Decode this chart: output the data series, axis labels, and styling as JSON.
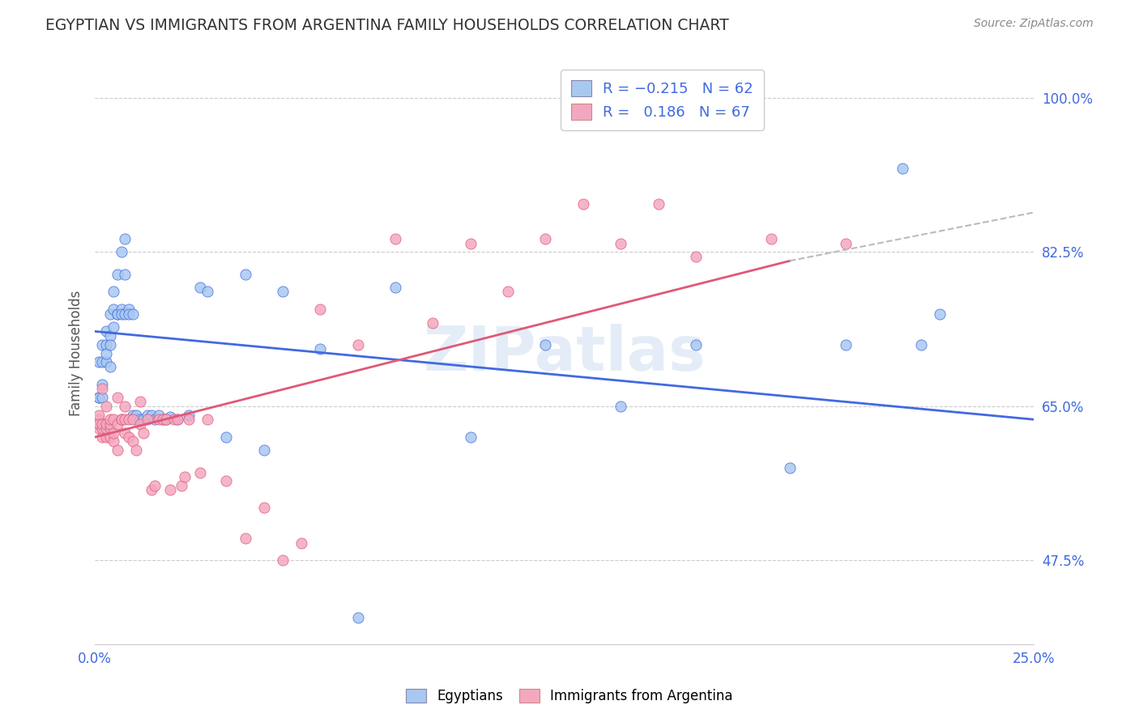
{
  "title": "EGYPTIAN VS IMMIGRANTS FROM ARGENTINA FAMILY HOUSEHOLDS CORRELATION CHART",
  "source": "Source: ZipAtlas.com",
  "ylabel": "Family Households",
  "ytick_labels": [
    "47.5%",
    "65.0%",
    "82.5%",
    "100.0%"
  ],
  "ytick_values": [
    0.475,
    0.65,
    0.825,
    1.0
  ],
  "xlim": [
    0.0,
    0.25
  ],
  "ylim": [
    0.38,
    1.04
  ],
  "xtick_positions": [
    0.0,
    0.05,
    0.1,
    0.15,
    0.2,
    0.25
  ],
  "xtick_labels_show": [
    "0.0%",
    "",
    "",
    "",
    "",
    "25.0%"
  ],
  "color_blue": "#A8C8F0",
  "color_pink": "#F4A8C0",
  "trendline_blue_color": "#4169E1",
  "trendline_pink_color": "#E05878",
  "trendline_dashed_color": "#BBBBBB",
  "title_color": "#333333",
  "axis_label_color": "#4169E1",
  "source_color": "#888888",
  "watermark": "ZIPatlas",
  "blue_x": [
    0.001,
    0.001,
    0.001,
    0.002,
    0.002,
    0.002,
    0.002,
    0.003,
    0.003,
    0.003,
    0.003,
    0.004,
    0.004,
    0.004,
    0.004,
    0.005,
    0.005,
    0.005,
    0.006,
    0.006,
    0.006,
    0.007,
    0.007,
    0.007,
    0.008,
    0.008,
    0.008,
    0.009,
    0.009,
    0.01,
    0.01,
    0.011,
    0.011,
    0.012,
    0.013,
    0.014,
    0.015,
    0.016,
    0.017,
    0.018,
    0.019,
    0.02,
    0.022,
    0.025,
    0.028,
    0.03,
    0.035,
    0.04,
    0.045,
    0.05,
    0.06,
    0.07,
    0.08,
    0.1,
    0.12,
    0.14,
    0.16,
    0.185,
    0.2,
    0.215,
    0.22,
    0.225
  ],
  "blue_y": [
    0.66,
    0.7,
    0.66,
    0.7,
    0.675,
    0.66,
    0.72,
    0.7,
    0.72,
    0.71,
    0.735,
    0.695,
    0.73,
    0.72,
    0.755,
    0.74,
    0.76,
    0.78,
    0.755,
    0.8,
    0.755,
    0.76,
    0.755,
    0.825,
    0.8,
    0.755,
    0.84,
    0.76,
    0.755,
    0.755,
    0.64,
    0.635,
    0.64,
    0.635,
    0.635,
    0.64,
    0.64,
    0.635,
    0.64,
    0.635,
    0.635,
    0.638,
    0.635,
    0.64,
    0.785,
    0.78,
    0.615,
    0.8,
    0.6,
    0.78,
    0.715,
    0.41,
    0.785,
    0.615,
    0.72,
    0.65,
    0.72,
    0.58,
    0.72,
    0.92,
    0.72,
    0.755
  ],
  "pink_x": [
    0.001,
    0.001,
    0.001,
    0.001,
    0.002,
    0.002,
    0.002,
    0.002,
    0.003,
    0.003,
    0.003,
    0.003,
    0.004,
    0.004,
    0.004,
    0.004,
    0.005,
    0.005,
    0.005,
    0.006,
    0.006,
    0.006,
    0.007,
    0.007,
    0.008,
    0.008,
    0.008,
    0.009,
    0.009,
    0.01,
    0.01,
    0.011,
    0.012,
    0.012,
    0.013,
    0.014,
    0.015,
    0.016,
    0.017,
    0.018,
    0.019,
    0.02,
    0.021,
    0.022,
    0.023,
    0.024,
    0.025,
    0.028,
    0.03,
    0.035,
    0.04,
    0.045,
    0.05,
    0.055,
    0.06,
    0.07,
    0.08,
    0.09,
    0.1,
    0.11,
    0.12,
    0.13,
    0.14,
    0.15,
    0.16,
    0.18,
    0.2
  ],
  "pink_y": [
    0.635,
    0.625,
    0.64,
    0.63,
    0.615,
    0.625,
    0.63,
    0.67,
    0.615,
    0.625,
    0.63,
    0.65,
    0.615,
    0.625,
    0.63,
    0.635,
    0.61,
    0.62,
    0.635,
    0.6,
    0.63,
    0.66,
    0.635,
    0.635,
    0.62,
    0.635,
    0.65,
    0.615,
    0.635,
    0.61,
    0.635,
    0.6,
    0.63,
    0.655,
    0.62,
    0.635,
    0.555,
    0.56,
    0.635,
    0.635,
    0.635,
    0.555,
    0.635,
    0.635,
    0.56,
    0.57,
    0.635,
    0.575,
    0.635,
    0.565,
    0.5,
    0.535,
    0.475,
    0.495,
    0.76,
    0.72,
    0.84,
    0.745,
    0.835,
    0.78,
    0.84,
    0.88,
    0.835,
    0.88,
    0.82,
    0.84,
    0.835
  ]
}
